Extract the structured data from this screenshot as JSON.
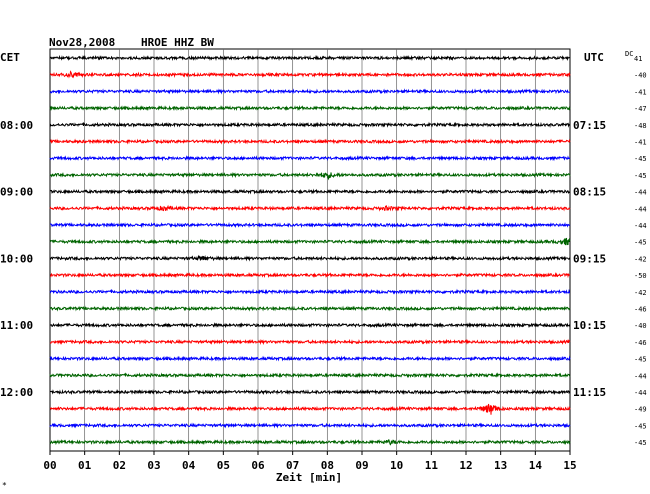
{
  "header": {
    "date": "Nov28,2008",
    "station": "HROE HHZ BW",
    "left_zone": "CET",
    "right_zone": "UTC",
    "dc_label": "DC"
  },
  "footer": {
    "xlabel": "Zeit [min]",
    "corner_mark": "*"
  },
  "colors": {
    "black": "#000000",
    "red": "#ff0000",
    "blue": "#0000ff",
    "green": "#006400",
    "grid": "#000000"
  },
  "chart_data": {
    "type": "line",
    "title": "Nov28,2008  HROE HHZ BW",
    "xlabel": "Zeit [min]",
    "ylabel": "",
    "x_ticks": [
      "00",
      "01",
      "02",
      "03",
      "04",
      "05",
      "06",
      "07",
      "08",
      "09",
      "10",
      "11",
      "12",
      "13",
      "14",
      "15"
    ],
    "xlim": [
      0,
      15
    ],
    "grid": true,
    "trace_minutes_per_line": 15,
    "trace_color_cycle": [
      "black",
      "red",
      "blue",
      "green"
    ],
    "left_time_labels": [
      {
        "trace": 4,
        "label": "08:00"
      },
      {
        "trace": 8,
        "label": "09:00"
      },
      {
        "trace": 12,
        "label": "10:00"
      },
      {
        "trace": 16,
        "label": "11:00"
      },
      {
        "trace": 20,
        "label": "12:00"
      }
    ],
    "right_time_labels": [
      {
        "trace": 4,
        "label": "07:15"
      },
      {
        "trace": 8,
        "label": "08:15"
      },
      {
        "trace": 12,
        "label": "09:15"
      },
      {
        "trace": 16,
        "label": "10:15"
      },
      {
        "trace": 20,
        "label": "11:15"
      }
    ],
    "dc_values": [
      41,
      -40,
      -41,
      -47,
      -48,
      -41,
      -45,
      -45,
      -44,
      -44,
      -44,
      -45,
      -42,
      -50,
      -42,
      -46,
      -40,
      -46,
      -45,
      -44,
      -44,
      -49,
      -45,
      -45
    ],
    "events": [
      {
        "trace": 1,
        "minute": 0.6,
        "amplitude": 0.35
      },
      {
        "trace": 7,
        "minute": 8.0,
        "amplitude": 0.55
      },
      {
        "trace": 9,
        "minute": 3.3,
        "amplitude": 0.35
      },
      {
        "trace": 9,
        "minute": 9.7,
        "amplitude": 0.25
      },
      {
        "trace": 11,
        "minute": 14.9,
        "amplitude": 0.5
      },
      {
        "trace": 12,
        "minute": 4.4,
        "amplitude": 0.35
      },
      {
        "trace": 21,
        "minute": 12.7,
        "amplitude": 1.0
      },
      {
        "trace": 23,
        "minute": 9.8,
        "amplitude": 0.3
      }
    ]
  }
}
